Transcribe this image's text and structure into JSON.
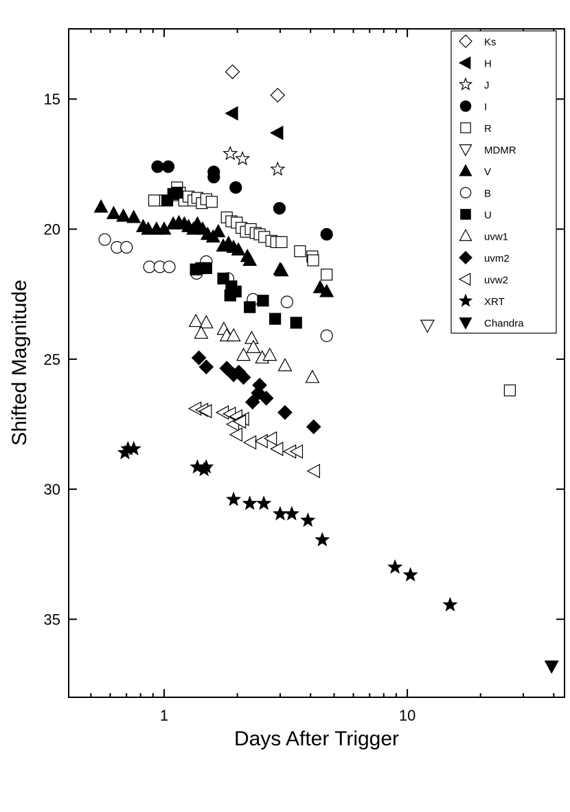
{
  "chart_data": {
    "type": "scatter",
    "title": "",
    "xlabel": "Days After Trigger",
    "ylabel": "Shifted Magnitude",
    "xscale": "log",
    "xlim": [
      0.405,
      44.3
    ],
    "ylim": [
      12.3,
      38.0
    ],
    "y_inverted": true,
    "x_ticks": [
      1,
      10
    ],
    "x_tick_labels": [
      "1",
      "10"
    ],
    "y_ticks": [
      15,
      20,
      25,
      30,
      35
    ],
    "y_tick_labels": [
      "15",
      "20",
      "25",
      "30",
      "35"
    ],
    "grid": false,
    "legend_position": "top-right",
    "series": [
      {
        "name": "Ks",
        "marker": "diamond",
        "filled": false,
        "points": [
          [
            1.91,
            13.95
          ],
          [
            2.93,
            14.85
          ]
        ]
      },
      {
        "name": "H",
        "marker": "triangle-left",
        "filled": true,
        "points": [
          [
            1.91,
            15.55
          ],
          [
            2.93,
            16.3
          ]
        ]
      },
      {
        "name": "J",
        "marker": "star",
        "filled": false,
        "points": [
          [
            1.87,
            17.1
          ],
          [
            2.1,
            17.3
          ],
          [
            2.93,
            17.7
          ]
        ]
      },
      {
        "name": "I",
        "marker": "circle",
        "filled": true,
        "points": [
          [
            0.94,
            17.6
          ],
          [
            1.04,
            17.6
          ],
          [
            1.6,
            17.8
          ],
          [
            1.6,
            18.0
          ],
          [
            1.97,
            18.4
          ],
          [
            2.98,
            19.2
          ],
          [
            4.66,
            20.2
          ]
        ]
      },
      {
        "name": "R",
        "marker": "square",
        "filled": false,
        "points": [
          [
            0.91,
            18.9
          ],
          [
            1.01,
            18.9
          ],
          [
            1.11,
            18.7
          ],
          [
            1.13,
            18.4
          ],
          [
            1.16,
            18.6
          ],
          [
            1.21,
            18.9
          ],
          [
            1.26,
            18.75
          ],
          [
            1.32,
            18.9
          ],
          [
            1.37,
            18.8
          ],
          [
            1.43,
            19.0
          ],
          [
            1.49,
            18.85
          ],
          [
            1.57,
            18.95
          ],
          [
            1.81,
            19.55
          ],
          [
            1.89,
            19.7
          ],
          [
            1.99,
            19.75
          ],
          [
            2.08,
            19.95
          ],
          [
            2.17,
            20.1
          ],
          [
            2.27,
            20.0
          ],
          [
            2.38,
            20.15
          ],
          [
            2.47,
            20.2
          ],
          [
            2.58,
            20.3
          ],
          [
            2.76,
            20.45
          ],
          [
            2.89,
            20.5
          ],
          [
            3.04,
            20.5
          ],
          [
            3.62,
            20.85
          ],
          [
            4.07,
            21.05
          ],
          [
            4.1,
            21.2
          ],
          [
            4.66,
            21.75
          ],
          [
            26.4,
            26.2
          ]
        ]
      },
      {
        "name": "MDMR",
        "marker": "triangle-down",
        "filled": false,
        "points": [
          [
            12.1,
            23.7
          ]
        ]
      },
      {
        "name": "V",
        "marker": "triangle-up",
        "filled": true,
        "points": [
          [
            0.55,
            19.15
          ],
          [
            0.62,
            19.4
          ],
          [
            0.68,
            19.5
          ],
          [
            0.75,
            19.55
          ],
          [
            0.82,
            19.9
          ],
          [
            0.86,
            20.0
          ],
          [
            0.93,
            20.0
          ],
          [
            1.0,
            20.0
          ],
          [
            1.09,
            19.8
          ],
          [
            1.15,
            19.75
          ],
          [
            1.21,
            19.8
          ],
          [
            1.26,
            19.9
          ],
          [
            1.32,
            20.0
          ],
          [
            1.37,
            19.8
          ],
          [
            1.44,
            20.0
          ],
          [
            1.51,
            20.2
          ],
          [
            1.59,
            20.3
          ],
          [
            1.67,
            20.1
          ],
          [
            1.75,
            20.65
          ],
          [
            1.84,
            20.55
          ],
          [
            1.93,
            20.7
          ],
          [
            2.02,
            20.8
          ],
          [
            2.2,
            21.05
          ],
          [
            2.25,
            21.2
          ],
          [
            3.0,
            21.55
          ],
          [
            3.04,
            21.6
          ],
          [
            4.38,
            22.25
          ],
          [
            4.66,
            22.4
          ]
        ]
      },
      {
        "name": "B",
        "marker": "circle",
        "filled": false,
        "points": [
          [
            0.57,
            20.4
          ],
          [
            0.64,
            20.7
          ],
          [
            0.7,
            20.7
          ],
          [
            0.87,
            21.45
          ],
          [
            0.96,
            21.45
          ],
          [
            1.05,
            21.45
          ],
          [
            1.36,
            21.7
          ],
          [
            1.49,
            21.25
          ],
          [
            1.83,
            21.9
          ],
          [
            2.32,
            22.7
          ],
          [
            3.2,
            22.8
          ],
          [
            4.66,
            24.1
          ]
        ]
      },
      {
        "name": "U",
        "marker": "square",
        "filled": true,
        "points": [
          [
            1.03,
            18.9
          ],
          [
            1.09,
            18.65
          ],
          [
            1.13,
            18.6
          ],
          [
            1.35,
            21.55
          ],
          [
            1.42,
            21.5
          ],
          [
            1.49,
            21.5
          ],
          [
            1.75,
            21.9
          ],
          [
            1.89,
            22.2
          ],
          [
            1.97,
            22.4
          ],
          [
            1.87,
            22.55
          ],
          [
            2.25,
            23.0
          ],
          [
            2.55,
            22.75
          ],
          [
            2.86,
            23.45
          ],
          [
            3.49,
            23.6
          ]
        ]
      },
      {
        "name": "uvw1",
        "marker": "triangle-up",
        "filled": false,
        "points": [
          [
            1.35,
            23.55
          ],
          [
            1.49,
            23.6
          ],
          [
            1.42,
            24.0
          ],
          [
            1.76,
            23.85
          ],
          [
            1.81,
            24.1
          ],
          [
            1.93,
            24.1
          ],
          [
            2.29,
            24.2
          ],
          [
            2.33,
            24.55
          ],
          [
            2.12,
            24.85
          ],
          [
            2.53,
            24.95
          ],
          [
            2.72,
            24.85
          ],
          [
            3.14,
            25.25
          ],
          [
            4.07,
            25.7
          ]
        ]
      },
      {
        "name": "uvm2",
        "marker": "diamond",
        "filled": true,
        "points": [
          [
            1.39,
            24.95
          ],
          [
            1.49,
            25.3
          ],
          [
            1.81,
            25.35
          ],
          [
            1.93,
            25.6
          ],
          [
            2.03,
            25.5
          ],
          [
            2.12,
            25.7
          ],
          [
            2.31,
            26.65
          ],
          [
            2.47,
            26.0
          ],
          [
            2.44,
            26.3
          ],
          [
            2.63,
            26.5
          ],
          [
            3.14,
            27.05
          ],
          [
            4.12,
            27.6
          ]
        ]
      },
      {
        "name": "uvw2",
        "marker": "triangle-left",
        "filled": false,
        "points": [
          [
            1.35,
            26.9
          ],
          [
            1.44,
            26.95
          ],
          [
            1.49,
            27.0
          ],
          [
            1.75,
            27.05
          ],
          [
            1.87,
            27.1
          ],
          [
            1.99,
            27.2
          ],
          [
            2.12,
            27.3
          ],
          [
            1.93,
            27.5
          ],
          [
            2.06,
            27.4
          ],
          [
            1.99,
            27.9
          ],
          [
            2.27,
            28.2
          ],
          [
            2.53,
            28.15
          ],
          [
            2.76,
            28.05
          ],
          [
            2.93,
            28.45
          ],
          [
            3.31,
            28.55
          ],
          [
            3.53,
            28.55
          ],
          [
            4.15,
            29.3
          ]
        ]
      },
      {
        "name": "XRT",
        "marker": "star",
        "filled": true,
        "points": [
          [
            0.69,
            28.6
          ],
          [
            0.71,
            28.45
          ],
          [
            0.75,
            28.45
          ],
          [
            1.37,
            29.15
          ],
          [
            1.46,
            29.25
          ],
          [
            1.49,
            29.15
          ],
          [
            1.93,
            30.4
          ],
          [
            2.25,
            30.55
          ],
          [
            2.57,
            30.55
          ],
          [
            3.0,
            30.95
          ],
          [
            3.35,
            30.95
          ],
          [
            3.9,
            31.2
          ],
          [
            4.47,
            31.95
          ],
          [
            8.9,
            33.0
          ],
          [
            10.3,
            33.3
          ],
          [
            15.0,
            34.45
          ]
        ]
      },
      {
        "name": "Chandra",
        "marker": "triangle-down",
        "filled": true,
        "points": [
          [
            39.2,
            36.8
          ]
        ]
      }
    ]
  }
}
